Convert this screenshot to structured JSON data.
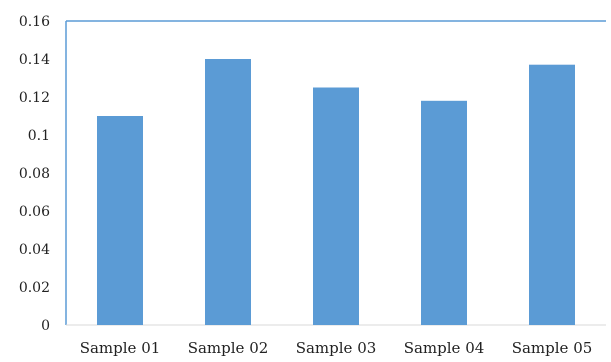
{
  "chart_data": {
    "type": "bar",
    "categories": [
      "Sample 01",
      "Sample 02",
      "Sample 03",
      "Sample 04",
      "Sample 05"
    ],
    "values": [
      0.11,
      0.14,
      0.125,
      0.118,
      0.137
    ],
    "title": "",
    "xlabel": "",
    "ylabel": "",
    "ylim": [
      0,
      0.16
    ],
    "yticks": [
      "0",
      "0.02",
      "0.04",
      "0.06",
      "0.08",
      "0.1",
      "0.12",
      "0.14",
      "0.16"
    ],
    "grid": false,
    "legend": "none",
    "colors": {
      "bar": "#5b9bd5",
      "frame": "#5b9bd5",
      "axis": "#d9d9d9",
      "text": "#222222"
    }
  }
}
